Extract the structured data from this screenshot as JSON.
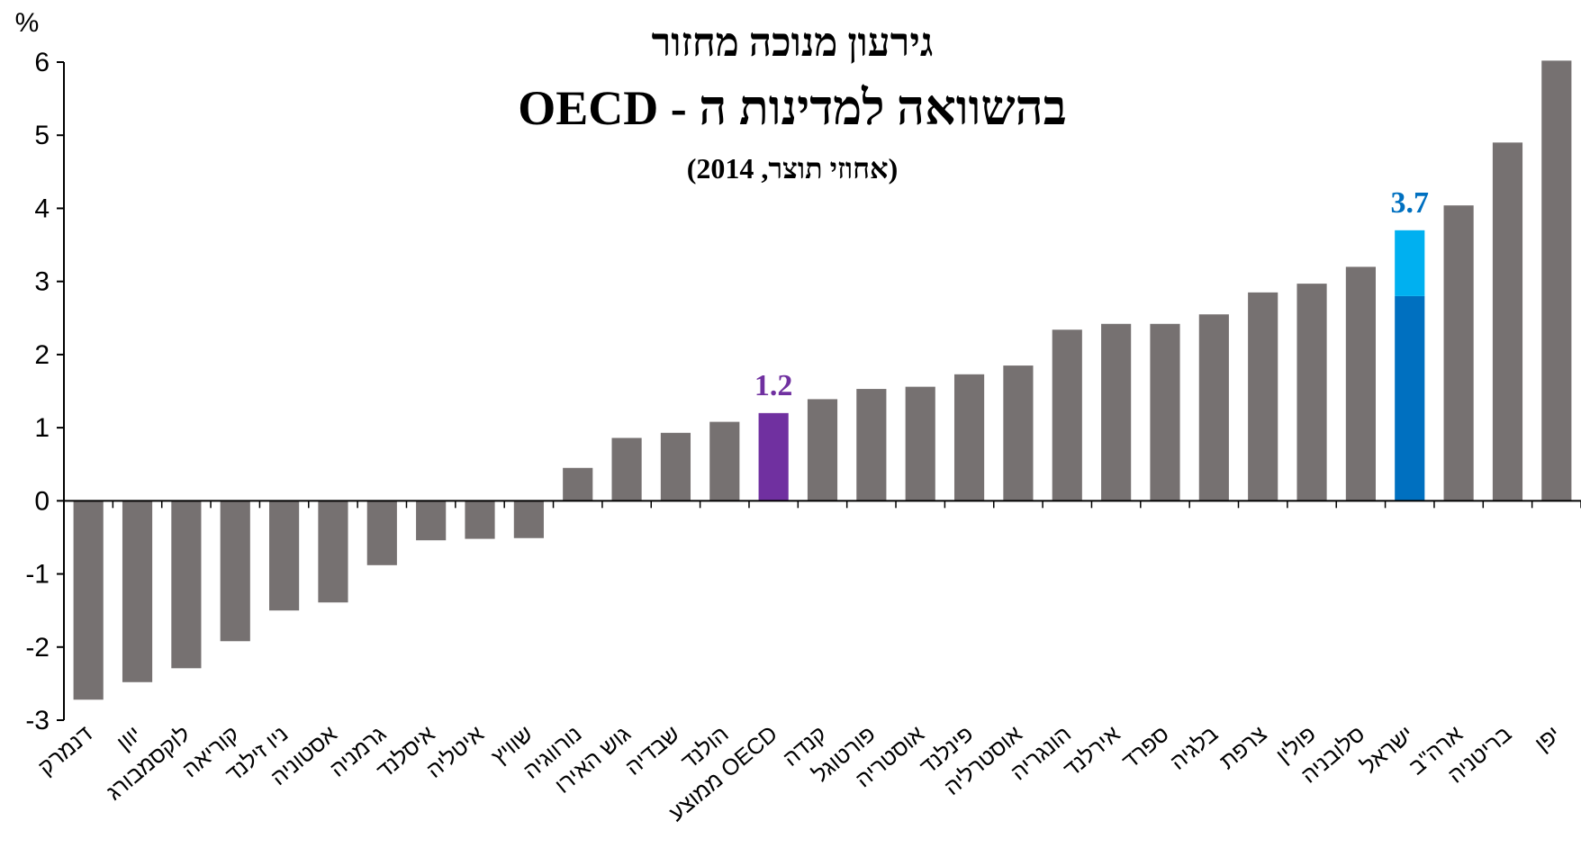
{
  "chart_data": {
    "type": "bar",
    "title": "גירעון מנוכה מחזור",
    "subtitle": "בהשוואה למדינות ה - OECD",
    "subtitle2": "(אחוזי תוצר, 2014)",
    "ylabel": "%",
    "ylim": [
      -3,
      6
    ],
    "yticks": [
      "-3",
      "-2",
      "-1",
      "0",
      "1",
      "2",
      "3",
      "4",
      "5",
      "6"
    ],
    "grid": false,
    "colors": {
      "default": "#767171",
      "oecd": "#7030a0",
      "israel_dark": "#0070c0",
      "israel_light": "#00b0f0"
    },
    "categories": [
      "דנמרק",
      "יוון",
      "לוקסמבורג",
      "קוריאה",
      "ניו זילנד",
      "אסטוניה",
      "גרמניה",
      "איסלנד",
      "איטליה",
      "שוויץ",
      "נורווגיה",
      "גוש האירו",
      "שבדיה",
      "הולנד",
      "ממוצע OECD",
      "קנדה",
      "פורטוגל",
      "אוסטריה",
      "פינלנד",
      "אוסטרליה",
      "הונגריה",
      "אירלנד",
      "ספרד",
      "בלגיה",
      "צרפת",
      "פולין",
      "סלובניה",
      "ישראל",
      "ארה\"ב",
      "בריטניה",
      "יפן"
    ],
    "values": [
      -2.72,
      -2.48,
      -2.29,
      -1.92,
      -1.5,
      -1.39,
      -0.88,
      -0.54,
      -0.52,
      -0.51,
      0.45,
      0.86,
      0.93,
      1.08,
      1.2,
      1.39,
      1.53,
      1.56,
      1.73,
      1.85,
      2.34,
      2.42,
      2.42,
      2.55,
      2.85,
      2.97,
      3.2,
      3.7,
      4.04,
      4.9,
      6.02
    ],
    "highlights": [
      {
        "category": "ממוצע OECD",
        "value": 1.2,
        "label": "1.2",
        "color": "#7030a0"
      },
      {
        "category": "ישראל",
        "value": 3.7,
        "label": "3.7",
        "color": "#0070c0",
        "stacked": [
          2.8,
          0.9
        ]
      }
    ]
  }
}
